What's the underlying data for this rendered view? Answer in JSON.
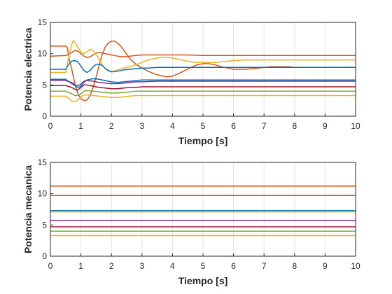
{
  "colors": [
    "#d95319",
    "#edb120",
    "#0072bd",
    "#7e2f8e",
    "#a2142f",
    "#77ac30",
    "#edb120"
  ],
  "chart_data": [
    {
      "type": "line",
      "title": "",
      "xlabel": "Tiempo [s]",
      "ylabel": "Potencia electrica",
      "xlim": [
        0,
        10
      ],
      "ylim": [
        0,
        15
      ],
      "xticks": [
        0,
        1,
        2,
        3,
        4,
        5,
        6,
        7,
        8,
        9,
        10
      ],
      "yticks": [
        0,
        5,
        10,
        15
      ],
      "grid": true,
      "series": [
        {
          "color": "#d95319",
          "x": [
            0,
            0.5,
            0.55,
            0.6,
            0.7,
            0.8,
            0.9,
            1.0,
            1.1,
            1.2,
            1.3,
            1.4,
            1.5,
            1.6,
            1.7,
            1.8,
            1.9,
            2.0,
            2.1,
            2.2,
            2.3,
            2.4,
            2.5,
            2.6,
            2.8,
            3.0,
            3.2,
            3.4,
            3.6,
            3.8,
            4.0,
            4.2,
            4.4,
            4.6,
            4.8,
            5.0,
            5.2,
            5.4,
            5.6,
            5.8,
            6.0,
            6.2,
            6.4,
            6.6,
            6.8,
            7.0,
            7.2,
            7.4,
            7.6,
            7.8,
            8.0,
            8.2,
            8.4,
            8.6,
            8.8,
            9.0,
            9.5,
            10
          ],
          "y": [
            11.2,
            11.2,
            11.0,
            9.5,
            7.5,
            5.2,
            3.6,
            2.8,
            2.5,
            2.6,
            3.3,
            4.6,
            6.3,
            8.2,
            9.9,
            11.1,
            11.7,
            12.0,
            12.0,
            11.7,
            11.2,
            10.6,
            9.9,
            9.2,
            8.3,
            7.7,
            7.2,
            6.8,
            6.5,
            6.3,
            6.4,
            6.8,
            7.3,
            7.8,
            8.2,
            8.4,
            8.4,
            8.2,
            7.9,
            7.7,
            7.5,
            7.5,
            7.5,
            7.6,
            7.7,
            7.8,
            7.9,
            7.9,
            7.9,
            7.9,
            7.8,
            7.8,
            7.8,
            7.8,
            7.8,
            7.8,
            7.8,
            7.8
          ]
        },
        {
          "color": "#d95319",
          "x": [
            0,
            0.5,
            0.6,
            0.7,
            0.8,
            0.9,
            1.0,
            1.1,
            1.2,
            1.3,
            1.4,
            1.5,
            1.6,
            1.8,
            2.0,
            2.2,
            2.4,
            2.6,
            2.8,
            3.0,
            3.5,
            4.0,
            4.5,
            5.0,
            6.0,
            7.0,
            8.0,
            9.0,
            10
          ],
          "y": [
            9.6,
            9.7,
            9.9,
            10.2,
            10.5,
            10.4,
            10.0,
            9.6,
            9.4,
            9.5,
            9.8,
            10.1,
            10.2,
            10.0,
            9.8,
            9.6,
            9.5,
            9.6,
            9.7,
            9.8,
            9.8,
            9.8,
            9.8,
            9.7,
            9.7,
            9.7,
            9.7,
            9.7,
            9.7
          ]
        },
        {
          "color": "#edb120",
          "x": [
            0,
            0.5,
            0.6,
            0.7,
            0.75,
            0.8,
            0.9,
            1.0,
            1.1,
            1.2,
            1.3,
            1.4,
            1.5,
            1.6,
            1.7,
            1.8,
            1.9,
            2.0,
            2.1,
            2.2,
            2.4,
            2.6,
            2.8,
            3.0,
            3.2,
            3.4,
            3.6,
            3.8,
            4.0,
            4.2,
            4.4,
            4.6,
            4.8,
            5.0,
            5.2,
            5.4,
            5.6,
            5.8,
            6.0,
            6.4,
            6.8,
            7.2,
            7.6,
            8.0,
            8.5,
            9.0,
            9.5,
            10
          ],
          "y": [
            7.0,
            7.0,
            9.5,
            11.5,
            12.1,
            11.9,
            11.0,
            10.2,
            10.0,
            10.3,
            10.7,
            10.5,
            9.9,
            9.1,
            8.2,
            7.6,
            7.2,
            7.1,
            7.2,
            7.4,
            7.7,
            7.9,
            8.2,
            8.6,
            9.0,
            9.2,
            9.4,
            9.4,
            9.3,
            9.1,
            8.9,
            8.7,
            8.6,
            8.6,
            8.6,
            8.6,
            8.7,
            8.8,
            8.9,
            9.0,
            9.0,
            9.0,
            9.0,
            9.0,
            9.0,
            9.0,
            9.0,
            9.0
          ]
        },
        {
          "color": "#0072bd",
          "x": [
            0,
            0.5,
            0.6,
            0.7,
            0.8,
            0.9,
            1.0,
            1.1,
            1.2,
            1.3,
            1.4,
            1.5,
            1.6,
            1.7,
            1.8,
            1.9,
            2.0,
            2.2,
            2.4,
            2.6,
            2.8,
            3.0,
            3.2,
            3.5,
            4.0,
            4.5,
            5.0,
            6.0,
            7.0,
            8.0,
            9.0,
            10
          ],
          "y": [
            7.5,
            7.5,
            8.3,
            8.8,
            8.9,
            8.7,
            8.0,
            7.3,
            7.0,
            7.3,
            7.9,
            8.3,
            8.3,
            8.1,
            7.6,
            7.3,
            7.1,
            7.2,
            7.4,
            7.5,
            7.6,
            7.7,
            7.7,
            7.8,
            7.8,
            7.8,
            7.8,
            7.8,
            7.8,
            7.8,
            7.8,
            7.8
          ]
        },
        {
          "color": "#0072bd",
          "x": [
            0,
            0.5,
            0.7,
            0.9,
            1.0,
            1.1,
            1.2,
            1.4,
            1.6,
            1.8,
            2.0,
            2.2,
            2.4,
            2.6,
            2.8,
            3.0,
            3.5,
            4.0,
            5.0,
            6.0,
            7.0,
            8.0,
            9.0,
            10
          ],
          "y": [
            5.9,
            5.9,
            5.2,
            4.6,
            4.8,
            5.4,
            5.8,
            6.0,
            5.9,
            5.7,
            5.5,
            5.4,
            5.5,
            5.6,
            5.7,
            5.8,
            5.8,
            5.8,
            5.8,
            5.8,
            5.8,
            5.8,
            5.8,
            5.8
          ]
        },
        {
          "color": "#7e2f8e",
          "x": [
            0,
            0.5,
            0.7,
            0.8,
            0.9,
            1.0,
            1.1,
            1.2,
            1.4,
            1.6,
            1.8,
            2.0,
            2.2,
            2.4,
            2.6,
            2.8,
            3.0,
            3.5,
            4.0,
            5.0,
            6.0,
            7.0,
            8.0,
            9.0,
            10
          ],
          "y": [
            5.7,
            5.7,
            5.4,
            5.0,
            4.9,
            5.1,
            5.6,
            5.7,
            5.6,
            5.4,
            5.3,
            5.2,
            5.2,
            5.3,
            5.4,
            5.5,
            5.5,
            5.6,
            5.6,
            5.6,
            5.6,
            5.6,
            5.6,
            5.6,
            5.6
          ]
        },
        {
          "color": "#a2142f",
          "x": [
            0,
            0.5,
            0.7,
            0.8,
            0.9,
            1.0,
            1.1,
            1.2,
            1.4,
            1.6,
            1.8,
            2.0,
            2.2,
            2.4,
            2.6,
            2.8,
            3.0,
            3.5,
            4.0,
            5.0,
            6.0,
            7.0,
            8.0,
            9.0,
            10
          ],
          "y": [
            4.9,
            4.9,
            4.6,
            4.3,
            4.2,
            4.6,
            5.0,
            5.0,
            4.8,
            4.6,
            4.5,
            4.4,
            4.4,
            4.5,
            4.6,
            4.6,
            4.7,
            4.7,
            4.7,
            4.7,
            4.7,
            4.7,
            4.7,
            4.7,
            4.7
          ]
        },
        {
          "color": "#77ac30",
          "x": [
            0,
            0.5,
            0.7,
            0.8,
            0.9,
            1.0,
            1.1,
            1.2,
            1.4,
            1.6,
            1.8,
            2.0,
            2.2,
            2.4,
            2.6,
            2.8,
            3.0,
            3.5,
            4.0,
            5.0,
            6.0,
            7.0,
            8.0,
            9.0,
            10
          ],
          "y": [
            4.0,
            4.0,
            3.6,
            3.3,
            3.3,
            3.6,
            4.0,
            4.1,
            4.0,
            3.9,
            3.8,
            3.7,
            3.7,
            3.8,
            3.9,
            4.0,
            4.0,
            4.0,
            4.0,
            4.0,
            4.0,
            4.0,
            4.0,
            4.0,
            4.0
          ]
        },
        {
          "color": "#edb120",
          "x": [
            0,
            0.5,
            0.6,
            0.7,
            0.8,
            0.9,
            1.0,
            1.1,
            1.2,
            1.4,
            1.6,
            1.8,
            2.0,
            2.2,
            2.4,
            2.6,
            2.8,
            3.0,
            3.5,
            4.0,
            5.0,
            6.0,
            7.0,
            8.0,
            9.0,
            10
          ],
          "y": [
            3.2,
            3.2,
            2.9,
            2.4,
            2.3,
            2.6,
            3.1,
            3.4,
            3.4,
            3.3,
            3.2,
            3.1,
            3.0,
            3.0,
            3.1,
            3.2,
            3.3,
            3.3,
            3.3,
            3.3,
            3.3,
            3.3,
            3.3,
            3.3,
            3.3,
            3.3
          ]
        }
      ]
    },
    {
      "type": "line",
      "title": "",
      "xlabel": "Tiempo [s]",
      "ylabel": "Potencia mecanica",
      "xlim": [
        0,
        10
      ],
      "ylim": [
        0,
        15
      ],
      "xticks": [
        0,
        1,
        2,
        3,
        4,
        5,
        6,
        7,
        8,
        9,
        10
      ],
      "yticks": [
        0,
        5,
        10,
        15
      ],
      "grid": true,
      "series": [
        {
          "color": "#d95319",
          "x": [
            0,
            10
          ],
          "y": [
            11.2,
            11.2
          ]
        },
        {
          "color": "#d95319",
          "x": [
            0,
            10
          ],
          "y": [
            9.7,
            9.7
          ]
        },
        {
          "color": "#0072bd",
          "x": [
            0,
            10
          ],
          "y": [
            7.3,
            7.3
          ]
        },
        {
          "color": "#edb120",
          "x": [
            0,
            10
          ],
          "y": [
            7.1,
            7.1
          ]
        },
        {
          "color": "#7e2f8e",
          "x": [
            0,
            10
          ],
          "y": [
            5.7,
            5.7
          ]
        },
        {
          "color": "#a2142f",
          "x": [
            0,
            10
          ],
          "y": [
            4.7,
            4.7
          ]
        },
        {
          "color": "#77ac30",
          "x": [
            0,
            10
          ],
          "y": [
            4.0,
            4.0
          ]
        },
        {
          "color": "#edb120",
          "x": [
            0,
            10
          ],
          "y": [
            3.3,
            3.3
          ]
        }
      ]
    }
  ]
}
